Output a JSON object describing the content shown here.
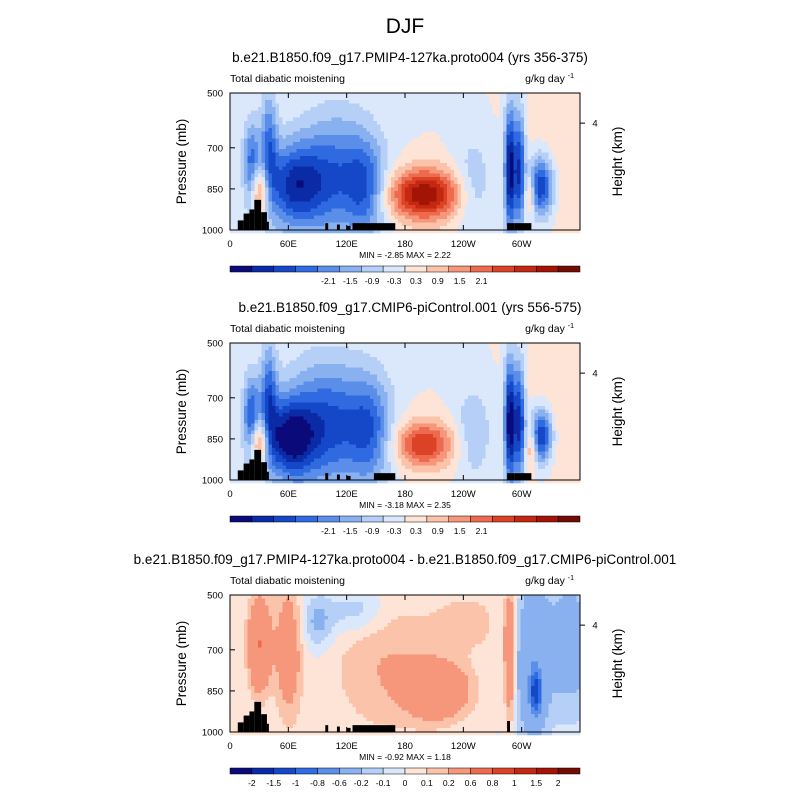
{
  "page_title": "DJF",
  "chart_data": [
    {
      "type": "heatmap",
      "title": "b.e21.B1850.f09_g17.PMIP4-127ka.proto004 (yrs 356-375)",
      "left_label": "Total diabatic moistening",
      "units_base": "g/kg day",
      "units_exp": "-1",
      "ylabel": "Pressure (mb)",
      "ylabel_right": "Height (km)",
      "xticks": [
        "0",
        "60E",
        "120E",
        "180",
        "120W",
        "60W"
      ],
      "xtick_values": [
        0,
        60,
        120,
        180,
        240,
        300
      ],
      "xlim": [
        0,
        360
      ],
      "yticks": [
        "500",
        "700",
        "850",
        "1000"
      ],
      "ytick_values": [
        500,
        700,
        850,
        1000
      ],
      "ylim": [
        500,
        1000
      ],
      "right_ticks": [
        "4"
      ],
      "right_tick_pressure": [
        610
      ],
      "stats": "MIN =  -2.85  MAX =   2.22",
      "colorbar_labels": [
        "-2.1",
        "-1.5",
        "-0.9",
        "-0.3",
        "0.3",
        "0.9",
        "1.5",
        "2.1"
      ],
      "colorbar_levels": [
        -2.4,
        -2.1,
        -1.8,
        -1.5,
        -1.2,
        -0.9,
        -0.6,
        -0.3,
        0,
        0.3,
        0.6,
        0.9,
        1.2,
        1.5,
        1.8,
        2.1,
        2.4
      ],
      "features": [
        {
          "lon": 200,
          "p": 870,
          "sx": 26,
          "sp": 65,
          "a": 2.1
        },
        {
          "lon": 30,
          "p": 860,
          "sx": 8,
          "sp": 70,
          "a": 1.6
        },
        {
          "lon": 22,
          "p": 780,
          "sx": 6,
          "sp": 120,
          "a": -1.4
        },
        {
          "lon": 40,
          "p": 700,
          "sx": 6,
          "sp": 150,
          "a": -1.2
        },
        {
          "lon": 65,
          "p": 840,
          "sx": 22,
          "sp": 110,
          "a": -1.7
        },
        {
          "lon": 110,
          "p": 800,
          "sx": 28,
          "sp": 160,
          "a": -1.3
        },
        {
          "lon": 140,
          "p": 850,
          "sx": 14,
          "sp": 120,
          "a": -1.0
        },
        {
          "lon": 288,
          "p": 780,
          "sx": 4,
          "sp": 160,
          "a": -2.3
        },
        {
          "lon": 298,
          "p": 780,
          "sx": 4,
          "sp": 150,
          "a": -1.8
        },
        {
          "lon": 320,
          "p": 840,
          "sx": 9,
          "sp": 80,
          "a": -1.9
        },
        {
          "lon": 308,
          "p": 870,
          "sx": 4,
          "sp": 50,
          "a": 0.8
        },
        {
          "lon": 250,
          "p": 840,
          "sx": 14,
          "sp": 120,
          "a": -0.6
        },
        {
          "lon": 340,
          "p": 720,
          "sx": 30,
          "sp": 250,
          "a": 0.25
        }
      ],
      "topography_mb": [
        {
          "lon0": 8,
          "lon1": 14,
          "p": 965
        },
        {
          "lon0": 14,
          "lon1": 20,
          "p": 940
        },
        {
          "lon0": 20,
          "lon1": 25,
          "p": 925
        },
        {
          "lon0": 25,
          "lon1": 32,
          "p": 890
        },
        {
          "lon0": 32,
          "lon1": 38,
          "p": 935
        },
        {
          "lon0": 38,
          "lon1": 40,
          "p": 970
        },
        {
          "lon0": 98,
          "lon1": 101,
          "p": 975
        },
        {
          "lon0": 110,
          "lon1": 113,
          "p": 980
        },
        {
          "lon0": 120,
          "lon1": 124,
          "p": 985
        },
        {
          "lon0": 126,
          "lon1": 170,
          "p": 975
        },
        {
          "lon0": 285,
          "lon1": 293,
          "p": 975
        },
        {
          "lon0": 293,
          "lon1": 310,
          "p": 975
        }
      ]
    },
    {
      "type": "heatmap",
      "title": "b.e21.B1850.f09_g17.CMIP6-piControl.001 (yrs 556-575)",
      "left_label": "Total diabatic moistening",
      "units_base": "g/kg day",
      "units_exp": "-1",
      "ylabel": "Pressure (mb)",
      "ylabel_right": "Height (km)",
      "xticks": [
        "0",
        "60E",
        "120E",
        "180",
        "120W",
        "60W"
      ],
      "xtick_values": [
        0,
        60,
        120,
        180,
        240,
        300
      ],
      "xlim": [
        0,
        360
      ],
      "yticks": [
        "500",
        "700",
        "850",
        "1000"
      ],
      "ytick_values": [
        500,
        700,
        850,
        1000
      ],
      "ylim": [
        500,
        1000
      ],
      "right_ticks": [
        "4"
      ],
      "right_tick_pressure": [
        610
      ],
      "stats": "MIN =  -3.18  MAX =   2.35",
      "colorbar_labels": [
        "-2.1",
        "-1.5",
        "-0.9",
        "-0.3",
        "0.3",
        "0.9",
        "1.5",
        "2.1"
      ],
      "colorbar_levels": [
        -2.4,
        -2.1,
        -1.8,
        -1.5,
        -1.2,
        -0.9,
        -0.6,
        -0.3,
        0,
        0.3,
        0.6,
        0.9,
        1.2,
        1.5,
        1.8,
        2.1,
        2.4
      ],
      "features": [
        {
          "lon": 200,
          "p": 870,
          "sx": 22,
          "sp": 60,
          "a": 1.5
        },
        {
          "lon": 30,
          "p": 860,
          "sx": 7,
          "sp": 60,
          "a": 1.7
        },
        {
          "lon": 22,
          "p": 780,
          "sx": 6,
          "sp": 110,
          "a": -1.5
        },
        {
          "lon": 40,
          "p": 700,
          "sx": 6,
          "sp": 140,
          "a": -1.3
        },
        {
          "lon": 60,
          "p": 850,
          "sx": 18,
          "sp": 100,
          "a": -1.9
        },
        {
          "lon": 100,
          "p": 800,
          "sx": 30,
          "sp": 160,
          "a": -1.6
        },
        {
          "lon": 145,
          "p": 820,
          "sx": 16,
          "sp": 140,
          "a": -1.1
        },
        {
          "lon": 288,
          "p": 790,
          "sx": 4,
          "sp": 160,
          "a": -2.4
        },
        {
          "lon": 298,
          "p": 790,
          "sx": 4,
          "sp": 150,
          "a": -1.9
        },
        {
          "lon": 320,
          "p": 840,
          "sx": 8,
          "sp": 70,
          "a": -2.0
        },
        {
          "lon": 310,
          "p": 880,
          "sx": 4,
          "sp": 50,
          "a": 0.9
        },
        {
          "lon": 250,
          "p": 830,
          "sx": 14,
          "sp": 120,
          "a": -0.6
        },
        {
          "lon": 340,
          "p": 720,
          "sx": 30,
          "sp": 250,
          "a": 0.25
        }
      ],
      "topography_mb": [
        {
          "lon0": 8,
          "lon1": 14,
          "p": 965
        },
        {
          "lon0": 14,
          "lon1": 20,
          "p": 940
        },
        {
          "lon0": 20,
          "lon1": 25,
          "p": 925
        },
        {
          "lon0": 25,
          "lon1": 32,
          "p": 890
        },
        {
          "lon0": 32,
          "lon1": 38,
          "p": 935
        },
        {
          "lon0": 38,
          "lon1": 40,
          "p": 970
        },
        {
          "lon0": 98,
          "lon1": 101,
          "p": 975
        },
        {
          "lon0": 110,
          "lon1": 113,
          "p": 980
        },
        {
          "lon0": 120,
          "lon1": 124,
          "p": 985
        },
        {
          "lon0": 148,
          "lon1": 170,
          "p": 975
        },
        {
          "lon0": 285,
          "lon1": 293,
          "p": 975
        },
        {
          "lon0": 293,
          "lon1": 310,
          "p": 975
        }
      ]
    },
    {
      "type": "heatmap",
      "title": "b.e21.B1850.f09_g17.PMIP4-127ka.proto004 - b.e21.B1850.f09_g17.CMIP6-piControl.001",
      "left_label": "Total diabatic moistening",
      "units_base": "g/kg day",
      "units_exp": "-1",
      "ylabel": "Pressure (mb)",
      "ylabel_right": "Height (km)",
      "xticks": [
        "0",
        "60E",
        "120E",
        "180",
        "120W",
        "60W"
      ],
      "xtick_values": [
        0,
        60,
        120,
        180,
        240,
        300
      ],
      "xlim": [
        0,
        360
      ],
      "yticks": [
        "500",
        "700",
        "850",
        "1000"
      ],
      "ytick_values": [
        500,
        700,
        850,
        1000
      ],
      "ylim": [
        500,
        1000
      ],
      "right_ticks": [
        "4"
      ],
      "right_tick_pressure": [
        610
      ],
      "stats": "MIN =  -0.92  MAX =   1.18",
      "colorbar_labels": [
        "-2",
        "-1.5",
        "-1",
        "-0.8",
        "-0.6",
        "-0.2",
        "-0.1",
        "0",
        "0.1",
        "0.2",
        "0.6",
        "0.8",
        "1",
        "1.5",
        "2"
      ],
      "colorbar_levels": [
        -2.5,
        -2,
        -1.5,
        -1,
        -0.8,
        -0.6,
        -0.2,
        -0.1,
        0,
        0.1,
        0.2,
        0.6,
        0.8,
        1,
        1.5,
        2,
        2.5
      ],
      "features": [
        {
          "lon": 30,
          "p": 680,
          "sx": 8,
          "sp": 120,
          "a": 0.6
        },
        {
          "lon": 60,
          "p": 700,
          "sx": 10,
          "sp": 180,
          "a": 0.35
        },
        {
          "lon": 90,
          "p": 600,
          "sx": 12,
          "sp": 70,
          "a": -0.25
        },
        {
          "lon": 130,
          "p": 560,
          "sx": 20,
          "sp": 60,
          "a": -0.2
        },
        {
          "lon": 160,
          "p": 760,
          "sx": 40,
          "sp": 180,
          "a": 0.2
        },
        {
          "lon": 215,
          "p": 850,
          "sx": 22,
          "sp": 70,
          "a": 0.5
        },
        {
          "lon": 288,
          "p": 720,
          "sx": 4,
          "sp": 160,
          "a": 0.55
        },
        {
          "lon": 310,
          "p": 750,
          "sx": 12,
          "sp": 200,
          "a": -0.45
        },
        {
          "lon": 315,
          "p": 860,
          "sx": 5,
          "sp": 60,
          "a": -0.8
        },
        {
          "lon": 350,
          "p": 680,
          "sx": 20,
          "sp": 200,
          "a": -0.3
        },
        {
          "lon": 245,
          "p": 600,
          "sx": 25,
          "sp": 80,
          "a": 0.15
        }
      ],
      "topography_mb": [
        {
          "lon0": 8,
          "lon1": 14,
          "p": 965
        },
        {
          "lon0": 14,
          "lon1": 20,
          "p": 940
        },
        {
          "lon0": 20,
          "lon1": 25,
          "p": 925
        },
        {
          "lon0": 25,
          "lon1": 32,
          "p": 890
        },
        {
          "lon0": 32,
          "lon1": 38,
          "p": 935
        },
        {
          "lon0": 38,
          "lon1": 40,
          "p": 970
        },
        {
          "lon0": 98,
          "lon1": 101,
          "p": 975
        },
        {
          "lon0": 110,
          "lon1": 113,
          "p": 980
        },
        {
          "lon0": 120,
          "lon1": 124,
          "p": 985
        },
        {
          "lon0": 126,
          "lon1": 170,
          "p": 975
        },
        {
          "lon0": 285,
          "lon1": 288,
          "p": 960
        }
      ]
    }
  ],
  "palette": [
    "#0a0a7a",
    "#0b2aa6",
    "#1548c8",
    "#2f6ae0",
    "#5b8ee9",
    "#89b1f0",
    "#b5cff6",
    "#dbe8fb",
    "#fde4d6",
    "#fbc3aa",
    "#f6967a",
    "#ee6a4e",
    "#dc4226",
    "#c42811",
    "#a11406",
    "#730a03"
  ],
  "topo_color": "#000000"
}
